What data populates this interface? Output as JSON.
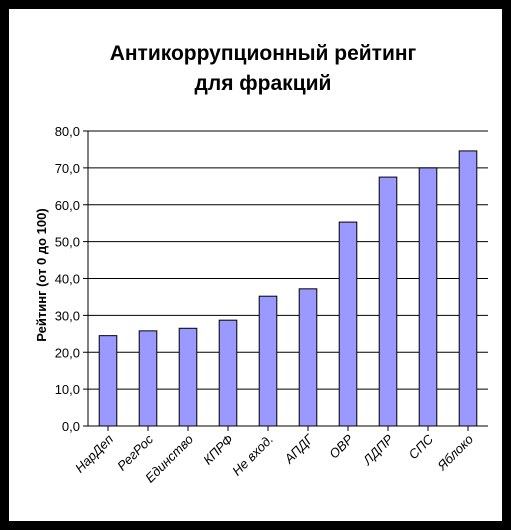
{
  "chart_data": {
    "type": "bar",
    "title": [
      "Антикоррупционный рейтинг",
      "для фракций"
    ],
    "ylabel": "Рейтинг (от 0 до 100)",
    "xlabel": "",
    "ylim": [
      0,
      80
    ],
    "yticks": [
      "0,0",
      "10,0",
      "20,0",
      "30,0",
      "40,0",
      "50,0",
      "60,0",
      "70,0",
      "80,0"
    ],
    "categories": [
      "НарДеп",
      "РегРос",
      "Единство",
      "КПРФ",
      "Не вход.",
      "АПДГ",
      "ОВР",
      "ЛДПР",
      "СПС",
      "Яблоко"
    ],
    "values": [
      24.5,
      25.8,
      26.5,
      28.7,
      35.2,
      37.2,
      55.3,
      67.5,
      70.0,
      74.6
    ],
    "grid": true,
    "bar_color": "#9999ff",
    "bar_stroke": "#000000"
  }
}
